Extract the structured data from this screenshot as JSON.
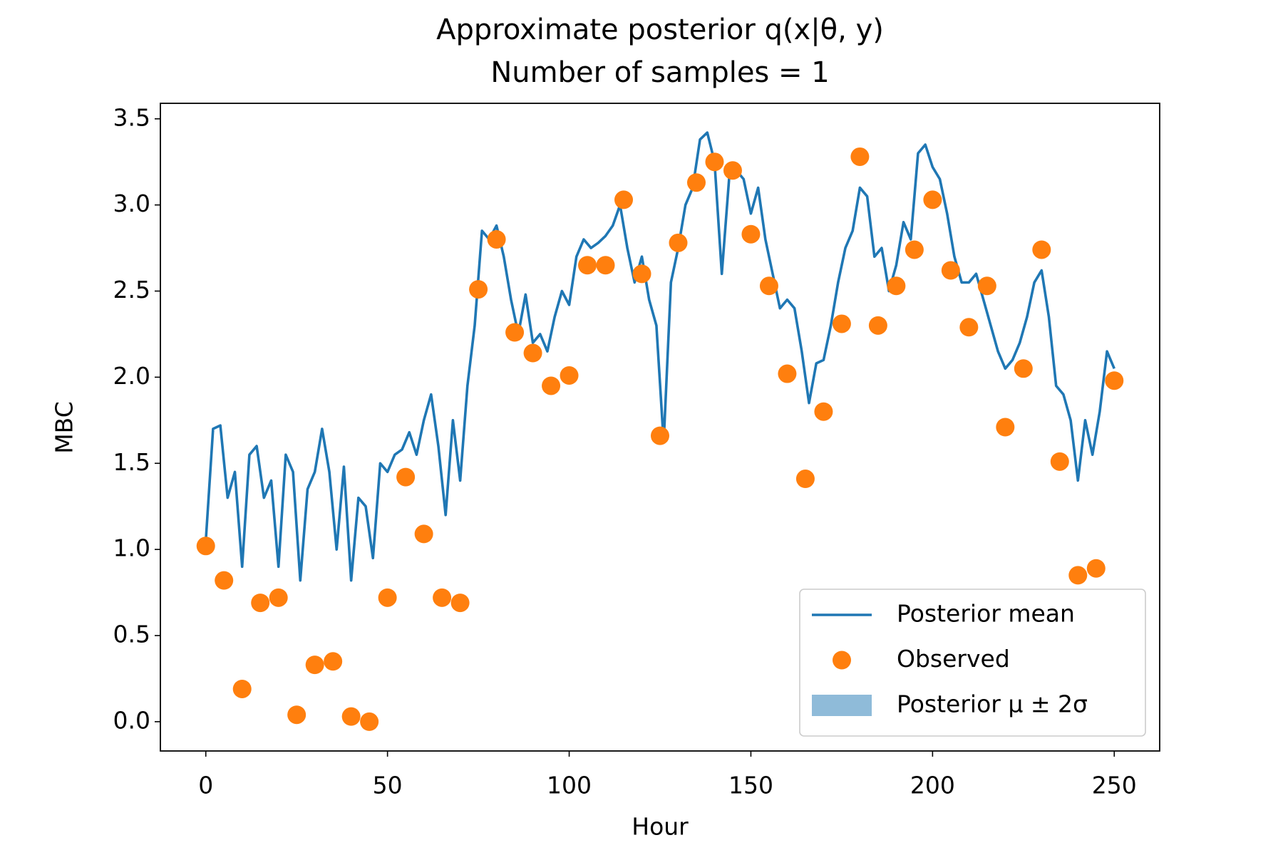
{
  "chart_data": {
    "type": "line",
    "title": "Approximate posterior q(x|θ, y)",
    "subtitle": "Number of samples = 1",
    "x_label": "Hour",
    "y_label": "MBC",
    "xlim": [
      -12.5,
      262.5
    ],
    "xticks": [
      0,
      50,
      100,
      150,
      200,
      250
    ],
    "ylim": [
      -0.17,
      3.59
    ],
    "yticks": [
      {
        "value": 0,
        "label": "0.0"
      },
      0.5,
      {
        "value": 1,
        "label": "1.0"
      },
      1.5,
      {
        "value": 2,
        "label": "2.0"
      },
      2.5,
      {
        "value": 3,
        "label": "3.0"
      },
      3.5
    ],
    "legend": "lower right",
    "series": [
      {
        "name": "Posterior mean",
        "kind": "line",
        "color": "#1f77b4",
        "x": [
          0,
          2,
          4,
          6,
          8,
          10,
          12,
          14,
          16,
          18,
          20,
          22,
          24,
          26,
          28,
          30,
          32,
          34,
          36,
          38,
          40,
          42,
          44,
          46,
          48,
          50,
          52,
          54,
          56,
          58,
          60,
          62,
          64,
          66,
          68,
          70,
          72,
          74,
          76,
          78,
          80,
          82,
          84,
          86,
          88,
          90,
          92,
          94,
          96,
          98,
          100,
          102,
          104,
          106,
          108,
          110,
          112,
          114,
          116,
          118,
          120,
          122,
          124,
          126,
          128,
          130,
          132,
          134,
          136,
          138,
          140,
          142,
          144,
          146,
          148,
          150,
          152,
          154,
          156,
          158,
          160,
          162,
          164,
          166,
          168,
          170,
          172,
          174,
          176,
          178,
          180,
          182,
          184,
          186,
          188,
          190,
          192,
          194,
          196,
          198,
          200,
          202,
          204,
          206,
          208,
          210,
          212,
          214,
          216,
          218,
          220,
          222,
          224,
          226,
          228,
          230,
          232,
          234,
          236,
          238,
          240,
          242,
          244,
          246,
          248,
          250
        ],
        "values": [
          1.05,
          1.7,
          1.72,
          1.3,
          1.45,
          0.9,
          1.55,
          1.6,
          1.3,
          1.4,
          0.9,
          1.55,
          1.45,
          0.82,
          1.35,
          1.45,
          1.7,
          1.45,
          1.0,
          1.48,
          0.82,
          1.3,
          1.25,
          0.95,
          1.5,
          1.45,
          1.55,
          1.58,
          1.68,
          1.55,
          1.75,
          1.9,
          1.6,
          1.2,
          1.75,
          1.4,
          1.95,
          2.3,
          2.85,
          2.8,
          2.88,
          2.7,
          2.45,
          2.25,
          2.48,
          2.2,
          2.25,
          2.15,
          2.35,
          2.5,
          2.42,
          2.7,
          2.8,
          2.75,
          2.78,
          2.82,
          2.88,
          3.0,
          2.75,
          2.55,
          2.7,
          2.45,
          2.3,
          1.62,
          2.55,
          2.75,
          3.0,
          3.1,
          3.38,
          3.42,
          3.25,
          2.6,
          3.15,
          3.2,
          3.15,
          2.95,
          3.1,
          2.8,
          2.6,
          2.4,
          2.45,
          2.4,
          2.15,
          1.85,
          2.08,
          2.1,
          2.3,
          2.55,
          2.75,
          2.85,
          3.1,
          3.05,
          2.7,
          2.75,
          2.5,
          2.65,
          2.9,
          2.8,
          3.3,
          3.35,
          3.22,
          3.15,
          2.95,
          2.7,
          2.55,
          2.55,
          2.6,
          2.45,
          2.3,
          2.15,
          2.05,
          2.1,
          2.2,
          2.35,
          2.55,
          2.62,
          2.35,
          1.95,
          1.9,
          1.75,
          1.4,
          1.75,
          1.55,
          1.8,
          2.15,
          2.05
        ]
      },
      {
        "name": "Observed",
        "kind": "scatter",
        "color": "#ff7f0e",
        "x": [
          0,
          5,
          10,
          15,
          20,
          25,
          30,
          35,
          40,
          45,
          50,
          55,
          60,
          65,
          70,
          75,
          80,
          85,
          90,
          95,
          100,
          105,
          110,
          115,
          120,
          125,
          130,
          135,
          140,
          145,
          150,
          155,
          160,
          165,
          170,
          175,
          180,
          185,
          190,
          195,
          200,
          205,
          210,
          215,
          220,
          225,
          230,
          235,
          240,
          245,
          250
        ],
        "values": [
          1.02,
          0.82,
          0.19,
          0.69,
          0.72,
          0.04,
          0.33,
          0.35,
          0.03,
          0.0,
          0.72,
          1.42,
          1.09,
          0.72,
          0.69,
          2.51,
          2.8,
          2.26,
          2.14,
          1.95,
          2.01,
          2.65,
          2.65,
          3.03,
          2.6,
          1.66,
          2.78,
          3.13,
          3.25,
          3.2,
          2.83,
          2.53,
          2.02,
          1.41,
          1.8,
          2.31,
          3.28,
          2.3,
          2.53,
          2.74,
          3.03,
          2.62,
          2.29,
          2.53,
          1.71,
          2.05,
          2.74,
          1.51,
          0.85,
          0.89,
          1.98
        ]
      },
      {
        "name": "Posterior μ ± 2σ",
        "kind": "band",
        "color": "#1f77b4",
        "opacity": 0.5
      }
    ]
  }
}
